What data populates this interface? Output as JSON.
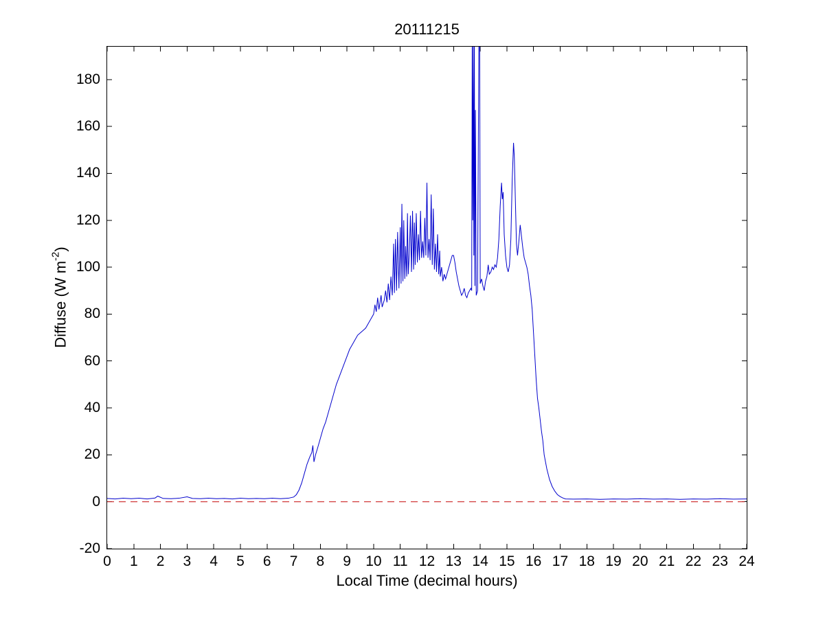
{
  "chart_data": {
    "type": "line",
    "title": "20111215",
    "xlabel": "Local Time (decimal hours)",
    "ylabel": "Diffuse (W m-2)",
    "ylabel_parts": {
      "prefix": "Diffuse (W m",
      "sup": "-2",
      "suffix": ")"
    },
    "xlim": [
      0,
      24
    ],
    "ylim": [
      -20,
      194
    ],
    "xticks": [
      0,
      1,
      2,
      3,
      4,
      5,
      6,
      7,
      8,
      9,
      10,
      11,
      12,
      13,
      14,
      15,
      16,
      17,
      18,
      19,
      20,
      21,
      22,
      23,
      24
    ],
    "yticks": [
      -20,
      0,
      20,
      40,
      60,
      80,
      100,
      120,
      140,
      160,
      180
    ],
    "grid": false,
    "legend": "none",
    "axis_color": "#000000",
    "background_color": "#ffffff",
    "series": [
      {
        "name": "diffuse-irradiance",
        "color": "#0000CC",
        "style": "solid",
        "points": [
          [
            0,
            1.4
          ],
          [
            0.3,
            1.2
          ],
          [
            0.6,
            1.5
          ],
          [
            0.9,
            1.3
          ],
          [
            1.2,
            1.5
          ],
          [
            1.5,
            1.2
          ],
          [
            1.8,
            1.6
          ],
          [
            1.9,
            2.4
          ],
          [
            2.1,
            1.4
          ],
          [
            2.4,
            1.3
          ],
          [
            2.7,
            1.5
          ],
          [
            3,
            2.1
          ],
          [
            3.2,
            1.4
          ],
          [
            3.5,
            1.3
          ],
          [
            3.8,
            1.5
          ],
          [
            4.1,
            1.3
          ],
          [
            4.4,
            1.4
          ],
          [
            4.7,
            1.2
          ],
          [
            5,
            1.5
          ],
          [
            5.3,
            1.3
          ],
          [
            5.6,
            1.4
          ],
          [
            5.9,
            1.3
          ],
          [
            6.2,
            1.5
          ],
          [
            6.5,
            1.3
          ],
          [
            6.8,
            1.5
          ],
          [
            7,
            2
          ],
          [
            7.1,
            3
          ],
          [
            7.2,
            5
          ],
          [
            7.3,
            8
          ],
          [
            7.4,
            12
          ],
          [
            7.5,
            16
          ],
          [
            7.6,
            19
          ],
          [
            7.68,
            21
          ],
          [
            7.72,
            24
          ],
          [
            7.76,
            17
          ],
          [
            7.82,
            20
          ],
          [
            7.9,
            23
          ],
          [
            8,
            27
          ],
          [
            8.1,
            31
          ],
          [
            8.2,
            34
          ],
          [
            8.3,
            38
          ],
          [
            8.4,
            42
          ],
          [
            8.5,
            46
          ],
          [
            8.6,
            50
          ],
          [
            8.7,
            53
          ],
          [
            8.8,
            56
          ],
          [
            8.9,
            59
          ],
          [
            9,
            62
          ],
          [
            9.1,
            65
          ],
          [
            9.2,
            67
          ],
          [
            9.3,
            69
          ],
          [
            9.4,
            71
          ],
          [
            9.5,
            72
          ],
          [
            9.6,
            73
          ],
          [
            9.7,
            74
          ],
          [
            9.8,
            76
          ],
          [
            9.9,
            78
          ],
          [
            10,
            80
          ],
          [
            10.05,
            84
          ],
          [
            10.1,
            81
          ],
          [
            10.15,
            87
          ],
          [
            10.2,
            82
          ],
          [
            10.28,
            88
          ],
          [
            10.32,
            83
          ],
          [
            10.4,
            86
          ],
          [
            10.45,
            90
          ],
          [
            10.5,
            85
          ],
          [
            10.55,
            93
          ],
          [
            10.6,
            86
          ],
          [
            10.65,
            96
          ],
          [
            10.7,
            88
          ],
          [
            10.75,
            110
          ],
          [
            10.78,
            89
          ],
          [
            10.82,
            112
          ],
          [
            10.86,
            90
          ],
          [
            10.9,
            115
          ],
          [
            10.95,
            91
          ],
          [
            11,
            117
          ],
          [
            11.03,
            93
          ],
          [
            11.06,
            127
          ],
          [
            11.1,
            94
          ],
          [
            11.13,
            120
          ],
          [
            11.17,
            95
          ],
          [
            11.2,
            109
          ],
          [
            11.24,
            96
          ],
          [
            11.27,
            123
          ],
          [
            11.3,
            97
          ],
          [
            11.34,
            106
          ],
          [
            11.38,
            122
          ],
          [
            11.42,
            98
          ],
          [
            11.46,
            124
          ],
          [
            11.5,
            99
          ],
          [
            11.53,
            119
          ],
          [
            11.56,
            101
          ],
          [
            11.6,
            123
          ],
          [
            11.64,
            102
          ],
          [
            11.68,
            114
          ],
          [
            11.72,
            103
          ],
          [
            11.76,
            124
          ],
          [
            11.8,
            104
          ],
          [
            11.84,
            111
          ],
          [
            11.88,
            104
          ],
          [
            11.92,
            121
          ],
          [
            11.96,
            105
          ],
          [
            12,
            136
          ],
          [
            12.04,
            104
          ],
          [
            12.08,
            112
          ],
          [
            12.12,
            103
          ],
          [
            12.16,
            131
          ],
          [
            12.2,
            101
          ],
          [
            12.24,
            125
          ],
          [
            12.28,
            99
          ],
          [
            12.32,
            110
          ],
          [
            12.36,
            98
          ],
          [
            12.4,
            114
          ],
          [
            12.44,
            97
          ],
          [
            12.48,
            107
          ],
          [
            12.5,
            96
          ],
          [
            12.55,
            100
          ],
          [
            12.6,
            94
          ],
          [
            12.65,
            97
          ],
          [
            12.7,
            95
          ],
          [
            12.75,
            97
          ],
          [
            12.8,
            99
          ],
          [
            12.85,
            101
          ],
          [
            12.9,
            103
          ],
          [
            12.95,
            105
          ],
          [
            13,
            105
          ],
          [
            13.05,
            102
          ],
          [
            13.1,
            98
          ],
          [
            13.15,
            95
          ],
          [
            13.2,
            92
          ],
          [
            13.25,
            90
          ],
          [
            13.3,
            88
          ],
          [
            13.35,
            89
          ],
          [
            13.4,
            91
          ],
          [
            13.45,
            88
          ],
          [
            13.5,
            87
          ],
          [
            13.55,
            89
          ],
          [
            13.6,
            90
          ],
          [
            13.65,
            91
          ],
          [
            13.68,
            90
          ],
          [
            13.7,
            196
          ],
          [
            13.72,
            120
          ],
          [
            13.74,
            196
          ],
          [
            13.76,
            105
          ],
          [
            13.78,
            196
          ],
          [
            13.8,
            92
          ],
          [
            13.82,
            167
          ],
          [
            13.85,
            88
          ],
          [
            13.9,
            90
          ],
          [
            13.95,
            196
          ],
          [
            13.98,
            196
          ],
          [
            14,
            93
          ],
          [
            14.05,
            95
          ],
          [
            14.1,
            92
          ],
          [
            14.15,
            90
          ],
          [
            14.2,
            94
          ],
          [
            14.25,
            96
          ],
          [
            14.3,
            101
          ],
          [
            14.34,
            97
          ],
          [
            14.4,
            98
          ],
          [
            14.45,
            100
          ],
          [
            14.5,
            99
          ],
          [
            14.55,
            101
          ],
          [
            14.6,
            100
          ],
          [
            14.65,
            104
          ],
          [
            14.7,
            112
          ],
          [
            14.75,
            126
          ],
          [
            14.8,
            136
          ],
          [
            14.83,
            129
          ],
          [
            14.86,
            132
          ],
          [
            14.9,
            114
          ],
          [
            14.95,
            105
          ],
          [
            15,
            100
          ],
          [
            15.05,
            98
          ],
          [
            15.1,
            101
          ],
          [
            15.15,
            112
          ],
          [
            15.2,
            137
          ],
          [
            15.25,
            153
          ],
          [
            15.28,
            147
          ],
          [
            15.32,
            128
          ],
          [
            15.36,
            110
          ],
          [
            15.4,
            105
          ],
          [
            15.45,
            111
          ],
          [
            15.5,
            118
          ],
          [
            15.55,
            113
          ],
          [
            15.6,
            108
          ],
          [
            15.65,
            104
          ],
          [
            15.7,
            102
          ],
          [
            15.75,
            100
          ],
          [
            15.8,
            97
          ],
          [
            15.85,
            92
          ],
          [
            15.9,
            88
          ],
          [
            15.95,
            82
          ],
          [
            16,
            72
          ],
          [
            16.05,
            62
          ],
          [
            16.1,
            52
          ],
          [
            16.15,
            44
          ],
          [
            16.2,
            40
          ],
          [
            16.25,
            35
          ],
          [
            16.3,
            30
          ],
          [
            16.35,
            26
          ],
          [
            16.4,
            20
          ],
          [
            16.5,
            14
          ],
          [
            16.6,
            9.5
          ],
          [
            16.7,
            6.5
          ],
          [
            16.8,
            4.5
          ],
          [
            16.9,
            3
          ],
          [
            17,
            2.2
          ],
          [
            17.1,
            1.6
          ],
          [
            17.2,
            1.2
          ],
          [
            17.5,
            1.1
          ],
          [
            18,
            1.2
          ],
          [
            18.5,
            1
          ],
          [
            19,
            1.2
          ],
          [
            19.5,
            1.1
          ],
          [
            20,
            1.3
          ],
          [
            20.5,
            1.1
          ],
          [
            21,
            1.2
          ],
          [
            21.5,
            1
          ],
          [
            22,
            1.2
          ],
          [
            22.5,
            1.1
          ],
          [
            23,
            1.3
          ],
          [
            23.5,
            1.1
          ],
          [
            24,
            1.2
          ]
        ]
      },
      {
        "name": "zero-reference-line",
        "color": "#CC2222",
        "style": "dashed",
        "points": [
          [
            0,
            0
          ],
          [
            24,
            0
          ]
        ]
      }
    ]
  }
}
